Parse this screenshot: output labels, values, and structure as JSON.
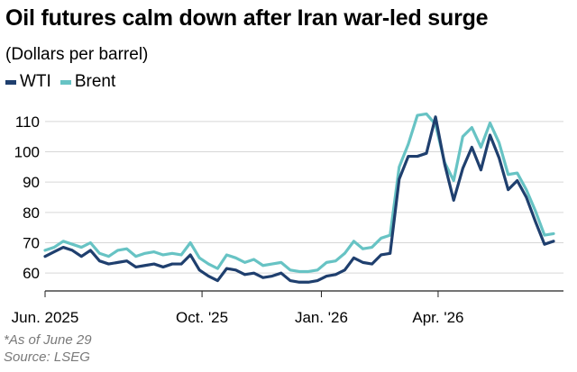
{
  "title": "Oil futures calm down after Iran war-led surge",
  "subtitle": "(Dollars per barrel)",
  "legend": [
    {
      "name": "WTI",
      "color": "#1f3f6e"
    },
    {
      "name": "Brent",
      "color": "#67c3c4"
    }
  ],
  "notes": {
    "as_of": "*As of June 29",
    "source": "Source: LSEG"
  },
  "chart_data": {
    "type": "line",
    "title": "Oil futures calm down after Iran war-led surge",
    "subtitle": "(Dollars per barrel)",
    "xlabel": "",
    "ylabel": "",
    "ylim": [
      55,
      115
    ],
    "xlim": [
      "2025-06-02",
      "2026-06-29"
    ],
    "grid": true,
    "legend_position": "top-left",
    "yticks": [
      60,
      70,
      80,
      90,
      100,
      110
    ],
    "xticks": [
      {
        "date": "2025-06-01",
        "label": "Jun. 2025"
      },
      {
        "date": "2025-10-01",
        "label": "Oct. '25"
      },
      {
        "date": "2026-01-01",
        "label": "Jan. '26"
      },
      {
        "date": "2026-04-01",
        "label": "Apr. '26"
      }
    ],
    "series": [
      {
        "name": "WTI",
        "color": "#1f3f6e",
        "points": [
          [
            "2025-06-02",
            65.5
          ],
          [
            "2025-06-09",
            67.0
          ],
          [
            "2025-06-16",
            68.5
          ],
          [
            "2025-06-23",
            67.5
          ],
          [
            "2025-06-30",
            65.5
          ],
          [
            "2025-07-07",
            67.5
          ],
          [
            "2025-07-14",
            64.0
          ],
          [
            "2025-07-21",
            63.0
          ],
          [
            "2025-07-28",
            63.5
          ],
          [
            "2025-08-04",
            64.0
          ],
          [
            "2025-08-11",
            62.0
          ],
          [
            "2025-08-18",
            62.5
          ],
          [
            "2025-08-25",
            63.0
          ],
          [
            "2025-09-01",
            62.0
          ],
          [
            "2025-09-08",
            63.0
          ],
          [
            "2025-09-15",
            63.0
          ],
          [
            "2025-09-22",
            66.0
          ],
          [
            "2025-09-29",
            61.0
          ],
          [
            "2025-10-06",
            59.0
          ],
          [
            "2025-10-13",
            57.5
          ],
          [
            "2025-10-20",
            61.5
          ],
          [
            "2025-10-27",
            61.0
          ],
          [
            "2025-11-03",
            59.5
          ],
          [
            "2025-11-10",
            60.0
          ],
          [
            "2025-11-17",
            58.5
          ],
          [
            "2025-11-24",
            59.0
          ],
          [
            "2025-12-01",
            60.0
          ],
          [
            "2025-12-08",
            57.5
          ],
          [
            "2025-12-15",
            57.0
          ],
          [
            "2025-12-22",
            57.0
          ],
          [
            "2025-12-29",
            57.5
          ],
          [
            "2026-01-05",
            59.0
          ],
          [
            "2026-01-12",
            59.5
          ],
          [
            "2026-01-19",
            61.0
          ],
          [
            "2026-01-26",
            65.0
          ],
          [
            "2026-02-02",
            63.5
          ],
          [
            "2026-02-09",
            63.0
          ],
          [
            "2026-02-16",
            66.0
          ],
          [
            "2026-02-23",
            66.5
          ],
          [
            "2026-03-02",
            91.0
          ],
          [
            "2026-03-09",
            98.5
          ],
          [
            "2026-03-16",
            98.5
          ],
          [
            "2026-03-23",
            99.5
          ],
          [
            "2026-03-30",
            111.5
          ],
          [
            "2026-04-06",
            96.0
          ],
          [
            "2026-04-13",
            84.0
          ],
          [
            "2026-04-20",
            94.5
          ],
          [
            "2026-04-27",
            101.5
          ],
          [
            "2026-05-04",
            94.0
          ],
          [
            "2026-05-11",
            105.5
          ],
          [
            "2026-05-18",
            98.0
          ],
          [
            "2026-05-25",
            87.5
          ],
          [
            "2026-06-01",
            90.5
          ],
          [
            "2026-06-08",
            85.0
          ],
          [
            "2026-06-15",
            77.0
          ],
          [
            "2026-06-22",
            69.5
          ],
          [
            "2026-06-29",
            70.5
          ]
        ]
      },
      {
        "name": "Brent",
        "color": "#67c3c4",
        "points": [
          [
            "2025-06-02",
            67.5
          ],
          [
            "2025-06-09",
            68.5
          ],
          [
            "2025-06-16",
            70.5
          ],
          [
            "2025-06-23",
            69.5
          ],
          [
            "2025-06-30",
            68.5
          ],
          [
            "2025-07-07",
            70.0
          ],
          [
            "2025-07-14",
            66.5
          ],
          [
            "2025-07-21",
            65.5
          ],
          [
            "2025-07-28",
            67.5
          ],
          [
            "2025-08-04",
            68.0
          ],
          [
            "2025-08-11",
            65.5
          ],
          [
            "2025-08-18",
            66.5
          ],
          [
            "2025-08-25",
            67.0
          ],
          [
            "2025-09-01",
            66.0
          ],
          [
            "2025-09-08",
            66.5
          ],
          [
            "2025-09-15",
            66.0
          ],
          [
            "2025-09-22",
            70.0
          ],
          [
            "2025-09-29",
            65.0
          ],
          [
            "2025-10-06",
            63.0
          ],
          [
            "2025-10-13",
            61.5
          ],
          [
            "2025-10-20",
            66.0
          ],
          [
            "2025-10-27",
            65.0
          ],
          [
            "2025-11-03",
            63.5
          ],
          [
            "2025-11-10",
            64.5
          ],
          [
            "2025-11-17",
            62.5
          ],
          [
            "2025-11-24",
            63.0
          ],
          [
            "2025-12-01",
            63.5
          ],
          [
            "2025-12-08",
            61.0
          ],
          [
            "2025-12-15",
            60.5
          ],
          [
            "2025-12-22",
            60.5
          ],
          [
            "2025-12-29",
            61.0
          ],
          [
            "2026-01-05",
            63.5
          ],
          [
            "2026-01-12",
            64.0
          ],
          [
            "2026-01-19",
            66.5
          ],
          [
            "2026-01-26",
            70.5
          ],
          [
            "2026-02-02",
            68.0
          ],
          [
            "2026-02-09",
            68.5
          ],
          [
            "2026-02-16",
            71.5
          ],
          [
            "2026-02-23",
            72.5
          ],
          [
            "2026-03-02",
            95.0
          ],
          [
            "2026-03-09",
            102.5
          ],
          [
            "2026-03-16",
            112.0
          ],
          [
            "2026-03-23",
            112.5
          ],
          [
            "2026-03-30",
            109.0
          ],
          [
            "2026-04-06",
            96.5
          ],
          [
            "2026-04-13",
            90.5
          ],
          [
            "2026-04-20",
            105.0
          ],
          [
            "2026-04-27",
            108.0
          ],
          [
            "2026-05-04",
            101.5
          ],
          [
            "2026-05-11",
            109.5
          ],
          [
            "2026-05-18",
            103.0
          ],
          [
            "2026-05-25",
            92.5
          ],
          [
            "2026-06-01",
            93.0
          ],
          [
            "2026-06-08",
            87.5
          ],
          [
            "2026-06-15",
            80.5
          ],
          [
            "2026-06-22",
            72.5
          ],
          [
            "2026-06-29",
            73.0
          ]
        ]
      }
    ]
  }
}
